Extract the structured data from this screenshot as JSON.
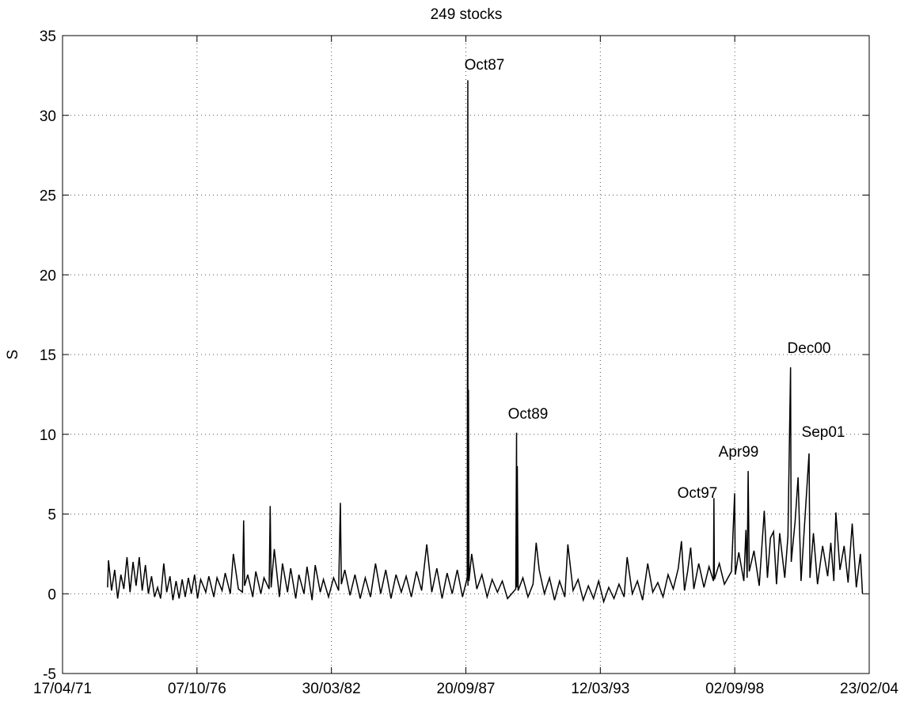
{
  "chart_data": {
    "type": "line",
    "title": "249 stocks",
    "ylabel": "S",
    "grid": true,
    "xlim": [
      "17/04/71",
      "23/02/04"
    ],
    "xticks": [
      "17/04/71",
      "07/10/76",
      "30/03/82",
      "20/09/87",
      "12/03/93",
      "02/09/98",
      "23/02/04"
    ],
    "ylim": [
      -5,
      35
    ],
    "yticks": [
      -5,
      0,
      5,
      10,
      15,
      20,
      25,
      30,
      35
    ],
    "annotations": [
      "Oct87",
      "Oct89",
      "Oct97",
      "Apr99",
      "Dec00",
      "Sep01"
    ],
    "x": [
      "15/02/73",
      "01/03/73",
      "15/04/73",
      "01/06/73",
      "15/07/73",
      "01/09/73",
      "15/10/73",
      "01/12/73",
      "15/01/74",
      "01/03/74",
      "15/04/74",
      "01/06/74",
      "15/07/74",
      "01/09/74",
      "15/10/74",
      "01/12/74",
      "15/01/75",
      "01/03/75",
      "15/04/75",
      "01/06/75",
      "15/07/75",
      "01/09/75",
      "15/10/75",
      "01/12/75",
      "15/01/76",
      "01/03/76",
      "15/04/76",
      "01/06/76",
      "15/07/76",
      "01/09/76",
      "15/10/76",
      "01/12/76",
      "15/02/77",
      "01/04/77",
      "15/06/77",
      "01/08/77",
      "15/10/77",
      "01/12/77",
      "15/02/78",
      "01/04/78",
      "15/06/78",
      "15/08/78",
      "01/09/78",
      "15/09/78",
      "01/11/78",
      "15/01/79",
      "01/03/79",
      "15/05/79",
      "01/07/79",
      "15/09/79",
      "01/10/79",
      "15/10/79",
      "01/12/79",
      "15/02/80",
      "01/04/80",
      "15/06/80",
      "01/08/80",
      "15/10/80",
      "01/12/80",
      "15/02/81",
      "01/04/81",
      "15/06/81",
      "01/08/81",
      "15/10/81",
      "01/12/81",
      "15/02/82",
      "01/05/82",
      "15/07/82",
      "10/08/82",
      "25/08/82",
      "15/10/82",
      "01/01/83",
      "15/03/83",
      "01/06/83",
      "15/08/83",
      "01/11/83",
      "15/01/84",
      "01/04/84",
      "15/06/84",
      "01/09/84",
      "15/11/84",
      "01/02/85",
      "15/04/85",
      "01/07/85",
      "15/09/85",
      "01/12/85",
      "15/02/86",
      "01/05/86",
      "15/07/86",
      "01/10/86",
      "15/12/86",
      "01/03/87",
      "15/05/87",
      "01/08/87",
      "10/10/87",
      "19/10/87",
      "21/10/87",
      "28/10/87",
      "05/11/87",
      "15/12/87",
      "01/03/88",
      "15/05/88",
      "01/08/88",
      "15/10/88",
      "01/01/89",
      "15/03/89",
      "01/06/89",
      "01/10/89",
      "13/10/89",
      "16/10/89",
      "24/10/89",
      "05/11/89",
      "15/01/90",
      "01/04/90",
      "15/06/90",
      "01/08/90",
      "15/09/90",
      "01/12/90",
      "15/02/91",
      "01/05/91",
      "15/07/91",
      "01/10/91",
      "15/11/91",
      "01/02/92",
      "15/04/92",
      "01/07/92",
      "15/09/92",
      "01/12/92",
      "15/02/93",
      "01/05/93",
      "15/07/93",
      "01/10/93",
      "15/12/93",
      "01/03/94",
      "15/04/94",
      "01/07/94",
      "15/09/94",
      "01/12/94",
      "15/02/95",
      "01/05/95",
      "15/07/95",
      "01/10/95",
      "15/12/95",
      "01/03/96",
      "15/05/96",
      "01/07/96",
      "15/08/96",
      "01/10/96",
      "15/11/96",
      "01/01/97",
      "15/03/97",
      "01/06/97",
      "15/08/97",
      "20/10/97",
      "27/10/97",
      "03/11/97",
      "15/01/98",
      "01/04/98",
      "15/07/98",
      "31/08/98",
      "10/09/98",
      "01/11/98",
      "15/01/99",
      "15/02/99",
      "05/03/99",
      "20/03/99",
      "05/04/99",
      "15/06/99",
      "01/09/99",
      "15/11/99",
      "01/01/00",
      "15/02/00",
      "01/04/00",
      "15/05/00",
      "01/07/00",
      "15/09/00",
      "01/11/00",
      "10/12/00",
      "20/12/00",
      "15/02/01",
      "01/04/01",
      "15/05/01",
      "01/07/01",
      "11/09/01",
      "25/09/01",
      "15/11/01",
      "15/01/02",
      "01/04/02",
      "15/06/02",
      "01/08/02",
      "15/09/02",
      "15/10/02",
      "15/12/02",
      "15/02/03",
      "15/04/03",
      "15/06/03",
      "15/08/03",
      "15/10/03",
      "15/11/03"
    ],
    "series": [
      {
        "color": "#000000",
        "values": [
          0.4,
          2.1,
          0.2,
          1.5,
          -0.3,
          1.2,
          0.3,
          2.3,
          0.1,
          2.0,
          0.5,
          2.3,
          0.2,
          1.8,
          0.0,
          1.1,
          -0.2,
          0.4,
          -0.3,
          1.9,
          0.1,
          1.1,
          -0.4,
          0.8,
          -0.3,
          0.9,
          -0.2,
          1.0,
          0.0,
          1.2,
          -0.3,
          0.9,
          0.1,
          1.1,
          -0.2,
          1.0,
          0.2,
          1.3,
          0.0,
          2.5,
          0.3,
          0.1,
          4.6,
          0.5,
          1.2,
          -0.2,
          1.4,
          0.0,
          1.0,
          0.3,
          5.5,
          0.4,
          2.8,
          -0.2,
          1.9,
          0.1,
          1.6,
          -0.3,
          1.2,
          0.0,
          1.7,
          -0.4,
          1.8,
          0.1,
          0.9,
          -0.2,
          1.0,
          0.2,
          5.7,
          0.6,
          1.5,
          -0.1,
          1.2,
          -0.3,
          1.0,
          -0.2,
          1.9,
          0.0,
          1.5,
          -0.3,
          1.2,
          0.1,
          1.1,
          -0.2,
          1.4,
          0.2,
          3.1,
          0.1,
          1.6,
          -0.3,
          1.3,
          0.0,
          1.5,
          -0.2,
          1.0,
          32.2,
          0.5,
          12.8,
          0.8,
          2.5,
          0.3,
          1.2,
          -0.2,
          0.9,
          0.1,
          0.8,
          -0.3,
          0.3,
          10.1,
          0.4,
          8.0,
          0.2,
          1.0,
          -0.2,
          0.6,
          3.2,
          1.5,
          0.0,
          1.0,
          -0.4,
          0.8,
          -0.2,
          3.1,
          0.2,
          0.9,
          -0.4,
          0.5,
          -0.3,
          0.8,
          -0.5,
          0.4,
          -0.3,
          0.6,
          -0.2,
          2.3,
          0.0,
          0.8,
          -0.4,
          1.9,
          0.1,
          0.7,
          -0.2,
          1.2,
          0.3,
          1.6,
          3.3,
          0.2,
          1.4,
          2.9,
          0.3,
          1.9,
          0.4,
          1.7,
          0.8,
          6.0,
          0.9,
          1.9,
          0.6,
          1.4,
          6.3,
          1.2,
          2.6,
          0.8,
          4.0,
          1.0,
          7.7,
          1.4,
          2.7,
          0.5,
          5.2,
          1.0,
          3.5,
          3.9,
          0.6,
          3.8,
          1.0,
          3.6,
          14.2,
          2.0,
          4.5,
          7.3,
          0.8,
          4.0,
          8.8,
          1.0,
          3.8,
          0.6,
          3.0,
          1.1,
          3.2,
          0.8,
          5.1,
          1.5,
          3.0,
          0.7,
          4.4,
          0.4,
          2.5,
          0.0
        ]
      }
    ]
  }
}
